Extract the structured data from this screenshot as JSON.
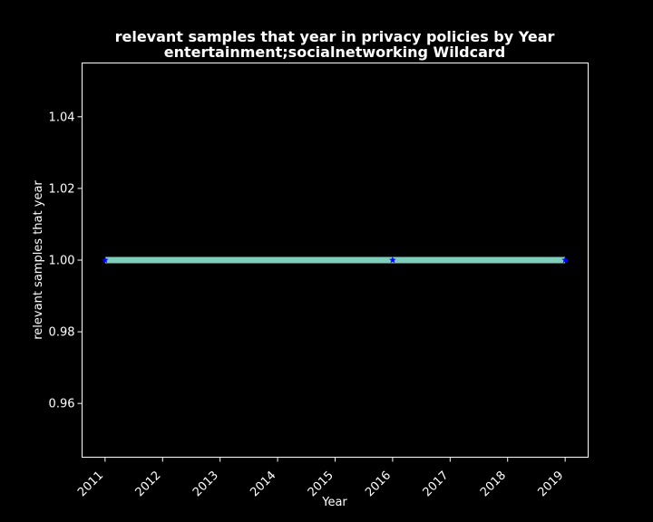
{
  "chart_data": {
    "type": "line",
    "title_line1": "relevant samples that year in privacy policies by Year",
    "title_line2": "entertainment;socialnetworking Wildcard",
    "xlabel": "Year",
    "ylabel": "relevant samples that year",
    "x_ticks": [
      "2011",
      "2012",
      "2013",
      "2014",
      "2015",
      "2016",
      "2017",
      "2018",
      "2019"
    ],
    "y_ticks": [
      "0.96",
      "0.98",
      "1.00",
      "1.02",
      "1.04"
    ],
    "xlim": [
      2010.6,
      2019.4
    ],
    "ylim": [
      0.945,
      1.055
    ],
    "grid": false,
    "series": [
      {
        "x": [
          2011,
          2016,
          2019
        ],
        "y": [
          1.0,
          1.0,
          1.0
        ],
        "line_color": "#7fcdbb",
        "marker": "star",
        "marker_color": "#0000ff"
      }
    ],
    "colors": {
      "background": "#000000",
      "foreground": "#ffffff"
    }
  }
}
